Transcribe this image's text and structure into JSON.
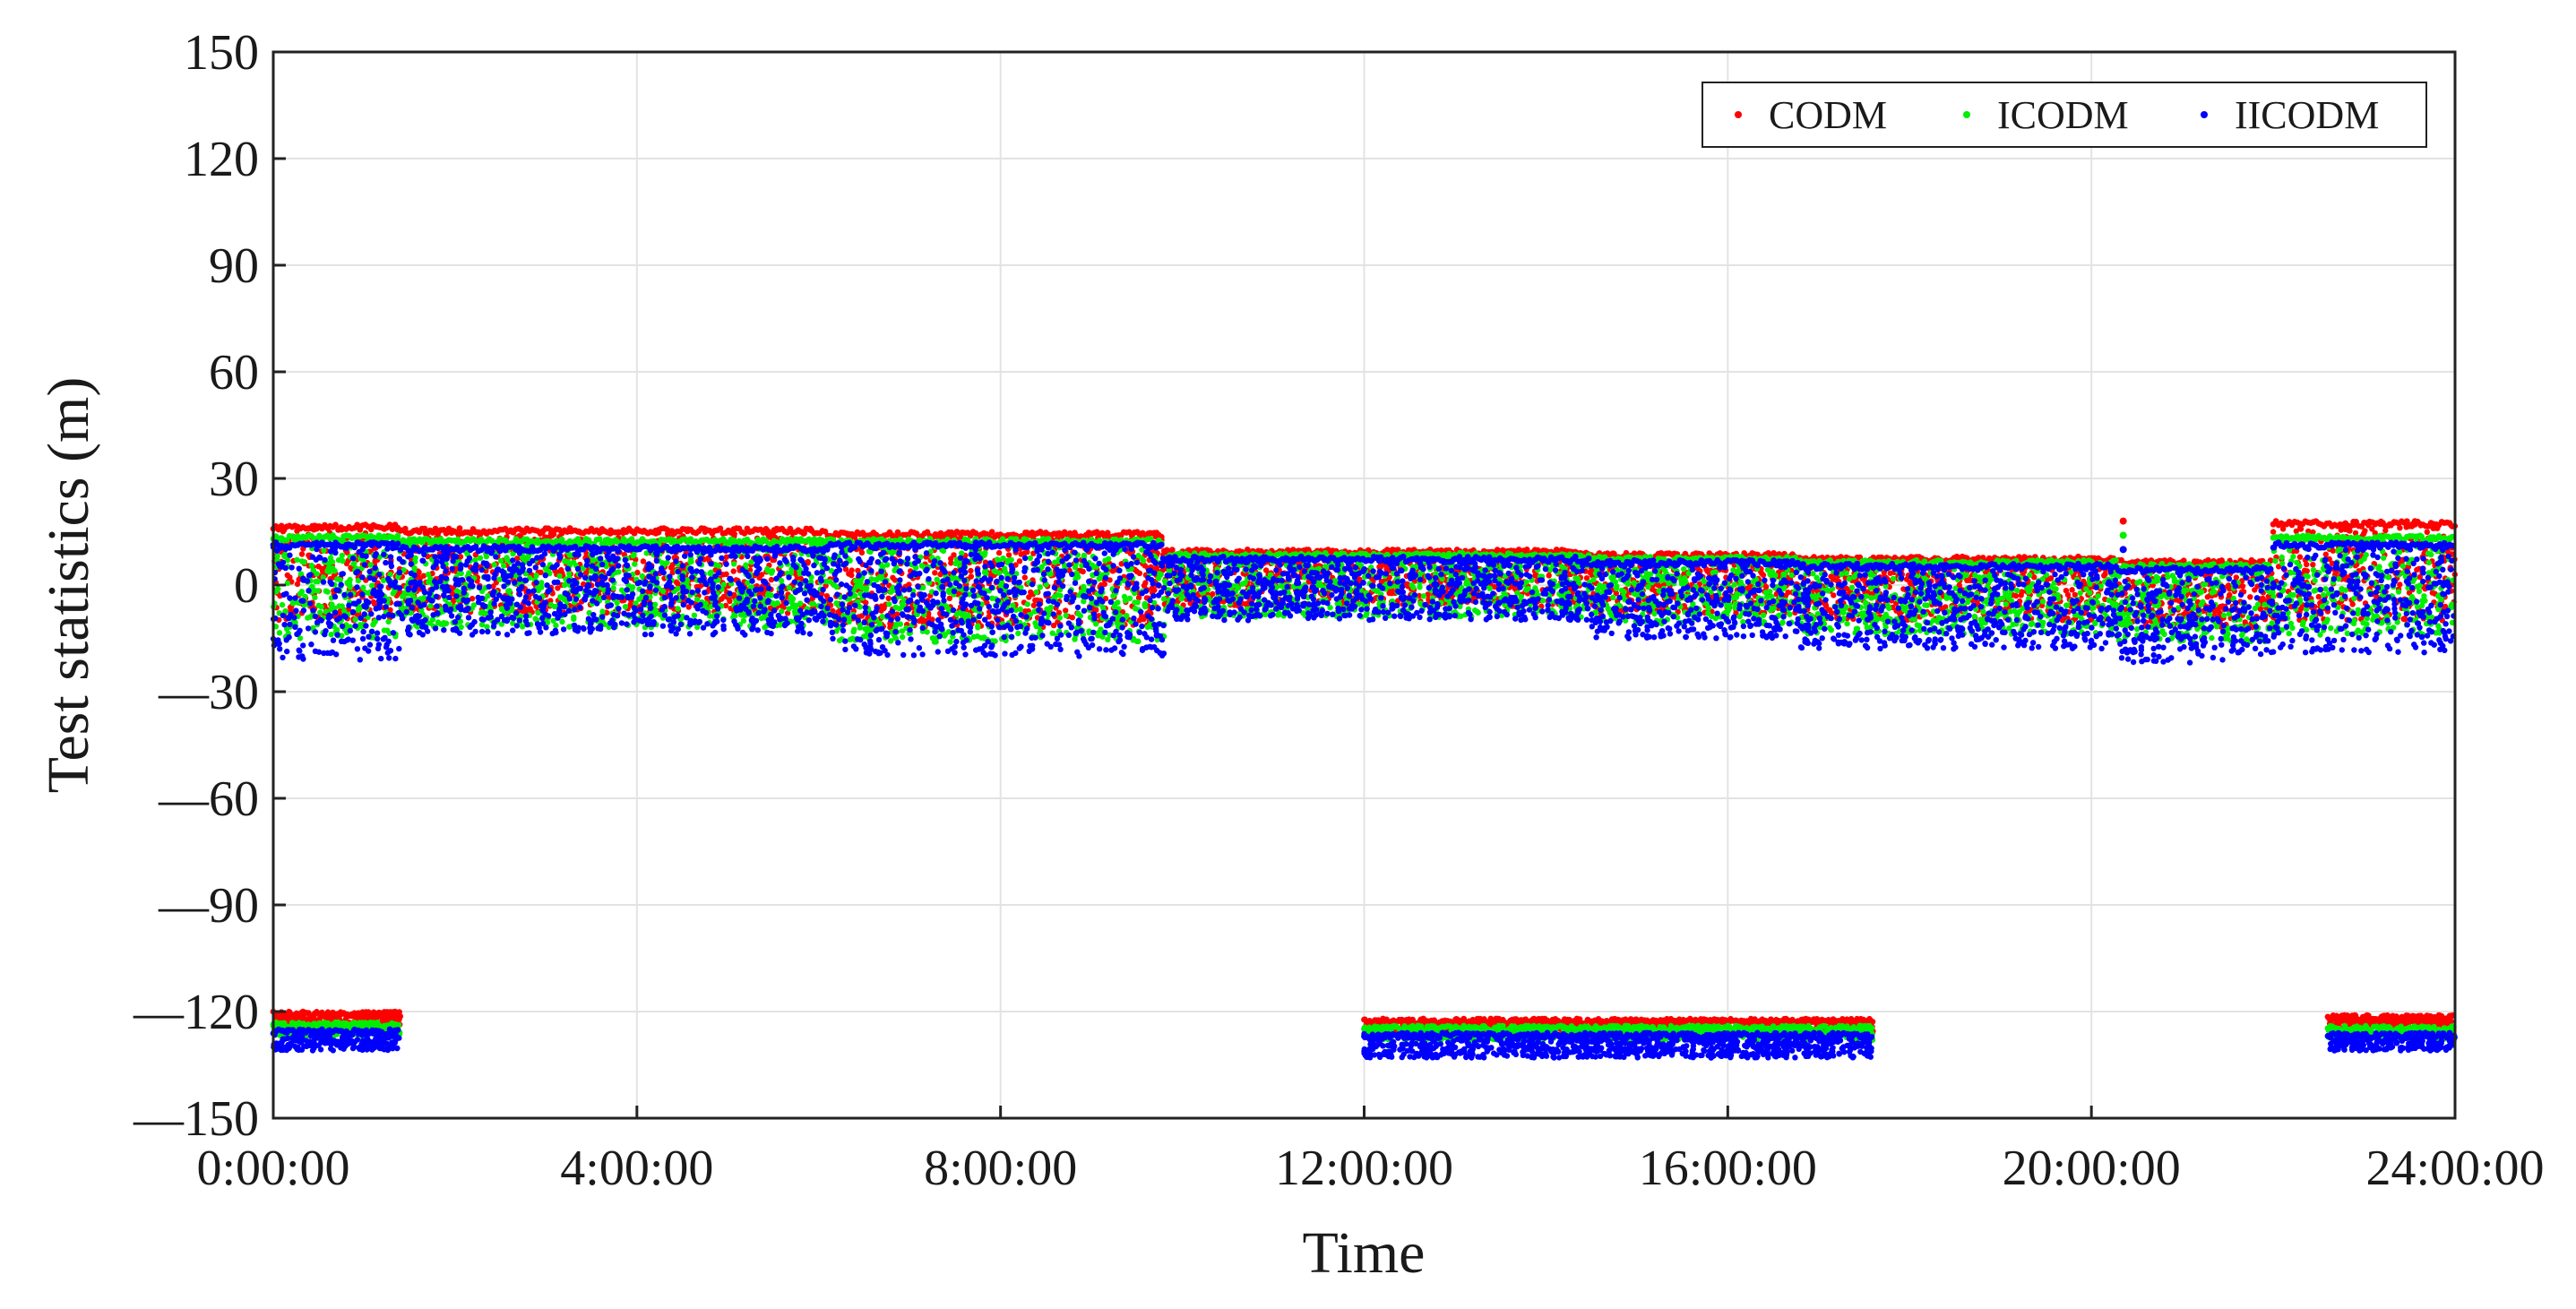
{
  "chart_data": {
    "type": "scatter",
    "title": "",
    "xlabel": "Time",
    "ylabel": "Test statistics (m)",
    "xlim": [
      0,
      24
    ],
    "ylim": [
      -150,
      150
    ],
    "grid": true,
    "legend_position": "top-right",
    "x_ticks": [
      0,
      4,
      8,
      12,
      16,
      20,
      24
    ],
    "x_tick_labels": [
      "0:00:00",
      "4:00:00",
      "8:00:00",
      "12:00:00",
      "16:00:00",
      "20:00:00",
      "24:00:00"
    ],
    "y_ticks": [
      150,
      120,
      90,
      60,
      30,
      0,
      -30,
      -60,
      -90,
      -120,
      -150
    ],
    "y_tick_labels": [
      "150",
      "120",
      "90",
      "60",
      "30",
      "0",
      "—30",
      "—60",
      "—90",
      "—120",
      "—150"
    ],
    "series": [
      {
        "name": "CODM",
        "color": "#ff0000",
        "bands": [
          {
            "x": [
              0.0,
              1.4
            ],
            "y_range": [
              -10,
              17
            ]
          },
          {
            "x": [
              1.4,
              6.1
            ],
            "y_range": [
              -8,
              16
            ]
          },
          {
            "x": [
              6.1,
              9.8
            ],
            "y_range": [
              -12,
              15
            ]
          },
          {
            "x": [
              9.8,
              14.5
            ],
            "y_range": [
              -6,
              10
            ]
          },
          {
            "x": [
              14.5,
              16.8
            ],
            "y_range": [
              -8,
              9
            ]
          },
          {
            "x": [
              16.8,
              20.3
            ],
            "y_range": [
              -10,
              8
            ]
          },
          {
            "x": [
              20.3,
              22.0
            ],
            "y_range": [
              -12,
              7
            ]
          },
          {
            "x": [
              22.0,
              24.0
            ],
            "y_range": [
              -10,
              18
            ]
          },
          {
            "x": [
              0.0,
              1.4
            ],
            "y_range": [
              -124,
              -120
            ]
          },
          {
            "x": [
              12.0,
              17.6
            ],
            "y_range": [
              -126,
              -122
            ]
          },
          {
            "x": [
              22.6,
              24.0
            ],
            "y_range": [
              -125,
              -121
            ]
          }
        ],
        "outliers": [
          {
            "x": 20.35,
            "y": 18
          }
        ]
      },
      {
        "name": "ICODM",
        "color": "#00ee00",
        "bands": [
          {
            "x": [
              0.0,
              1.4
            ],
            "y_range": [
              -15,
              14
            ]
          },
          {
            "x": [
              1.4,
              6.1
            ],
            "y_range": [
              -12,
              13
            ]
          },
          {
            "x": [
              6.1,
              9.8
            ],
            "y_range": [
              -16,
              13
            ]
          },
          {
            "x": [
              9.8,
              14.5
            ],
            "y_range": [
              -9,
              9
            ]
          },
          {
            "x": [
              14.5,
              16.8
            ],
            "y_range": [
              -11,
              8
            ]
          },
          {
            "x": [
              16.8,
              20.3
            ],
            "y_range": [
              -14,
              7
            ]
          },
          {
            "x": [
              20.3,
              22.0
            ],
            "y_range": [
              -16,
              6
            ]
          },
          {
            "x": [
              22.0,
              24.0
            ],
            "y_range": [
              -14,
              14
            ]
          },
          {
            "x": [
              0.0,
              1.4
            ],
            "y_range": [
              -127,
              -123
            ]
          },
          {
            "x": [
              12.0,
              17.6
            ],
            "y_range": [
              -128,
              -124
            ]
          },
          {
            "x": [
              22.6,
              24.0
            ],
            "y_range": [
              -128,
              -124
            ]
          }
        ],
        "outliers": [
          {
            "x": 20.35,
            "y": 14
          }
        ]
      },
      {
        "name": "IICODM",
        "color": "#0000ff",
        "bands": [
          {
            "x": [
              0.0,
              1.4
            ],
            "y_range": [
              -21,
              12
            ]
          },
          {
            "x": [
              1.4,
              6.1
            ],
            "y_range": [
              -14,
              11
            ]
          },
          {
            "x": [
              6.1,
              9.8
            ],
            "y_range": [
              -20,
              12
            ]
          },
          {
            "x": [
              9.8,
              14.5
            ],
            "y_range": [
              -10,
              8
            ]
          },
          {
            "x": [
              14.5,
              16.8
            ],
            "y_range": [
              -15,
              7
            ]
          },
          {
            "x": [
              16.8,
              20.3
            ],
            "y_range": [
              -18,
              6
            ]
          },
          {
            "x": [
              20.3,
              22.0
            ],
            "y_range": [
              -22,
              5
            ]
          },
          {
            "x": [
              22.0,
              24.0
            ],
            "y_range": [
              -19,
              12
            ]
          },
          {
            "x": [
              0.0,
              1.4
            ],
            "y_range": [
              -131,
              -125
            ]
          },
          {
            "x": [
              12.0,
              17.6
            ],
            "y_range": [
              -133,
              -126
            ]
          },
          {
            "x": [
              22.6,
              24.0
            ],
            "y_range": [
              -131,
              -126
            ]
          }
        ],
        "outliers": [
          {
            "x": 20.35,
            "y": 10
          }
        ]
      }
    ]
  }
}
